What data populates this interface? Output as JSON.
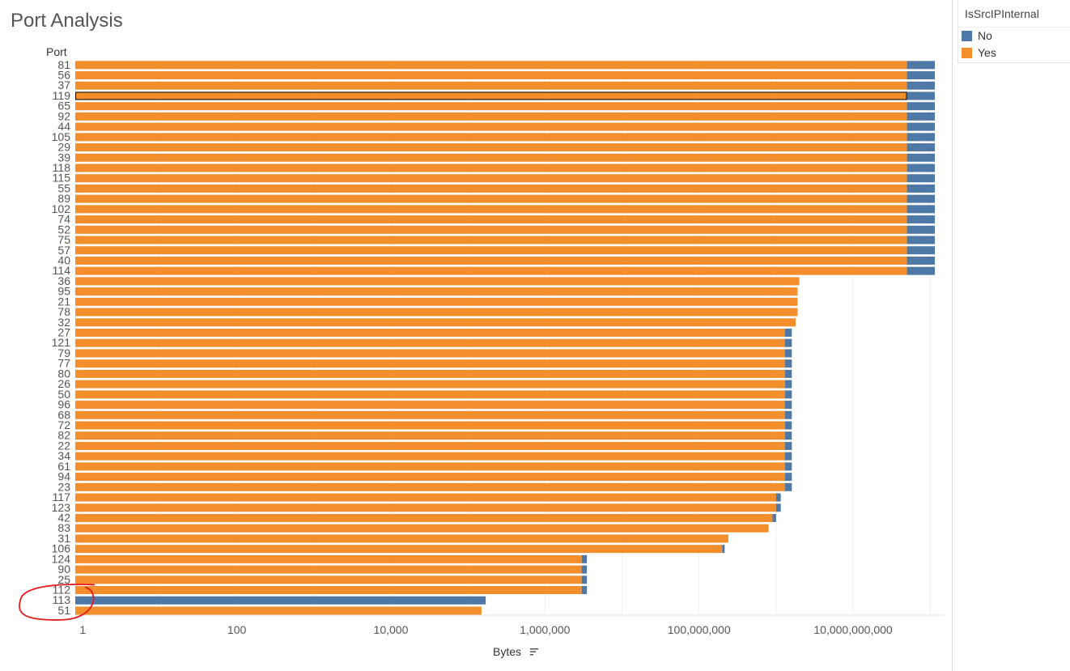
{
  "title": "Port Analysis",
  "legend": {
    "title": "IsSrcIPInternal",
    "items": [
      {
        "label": "No",
        "color": "#4e79a7"
      },
      {
        "label": "Yes",
        "color": "#f28e2b"
      }
    ]
  },
  "colors": {
    "no": "#4e79a7",
    "yes": "#f28e2b",
    "annotation": "#e31a1c",
    "selected_outline": "#000000"
  },
  "chart_data": {
    "type": "bar",
    "orientation": "horizontal",
    "stacked": true,
    "title": "Port Analysis",
    "ylabel": "Port",
    "xlabel": "Bytes",
    "x_scale": "log",
    "xlim": [
      0.8,
      150000000000
    ],
    "x_ticks": [
      1,
      100,
      10000,
      1000000,
      100000000,
      10000000000
    ],
    "x_tick_labels": [
      "1",
      "100",
      "10,000",
      "1,000,000",
      "100,000,000",
      "10,000,000,000"
    ],
    "grid": true,
    "legend_position": "right",
    "sort_icon": "sort-descending-icon",
    "selected_category": "119",
    "annotation": {
      "shape": "red freehand circle",
      "around_categories": [
        "113",
        "51"
      ]
    },
    "categories": [
      "81",
      "56",
      "37",
      "119",
      "65",
      "92",
      "44",
      "105",
      "29",
      "39",
      "118",
      "115",
      "55",
      "89",
      "102",
      "74",
      "52",
      "75",
      "57",
      "40",
      "114",
      "36",
      "95",
      "21",
      "78",
      "32",
      "27",
      "121",
      "79",
      "77",
      "80",
      "26",
      "50",
      "96",
      "68",
      "72",
      "82",
      "22",
      "34",
      "61",
      "94",
      "23",
      "117",
      "123",
      "42",
      "83",
      "31",
      "106",
      "124",
      "90",
      "25",
      "112",
      "113",
      "51"
    ],
    "series": [
      {
        "name": "Yes",
        "values": [
          50000000000,
          50000000000,
          50000000000,
          50000000000,
          50000000000,
          50000000000,
          50000000000,
          50000000000,
          50000000000,
          50000000000,
          50000000000,
          50000000000,
          50000000000,
          50000000000,
          50000000000,
          50000000000,
          50000000000,
          50000000000,
          50000000000,
          50000000000,
          50000000000,
          2000000000,
          1900000000,
          1900000000,
          1900000000,
          1800000000,
          1300000000,
          1300000000,
          1300000000,
          1300000000,
          1300000000,
          1300000000,
          1300000000,
          1300000000,
          1300000000,
          1300000000,
          1300000000,
          1300000000,
          1300000000,
          1300000000,
          1300000000,
          1300000000,
          1000000000,
          1000000000,
          900000000,
          800000000,
          240000000,
          200000000,
          3000000,
          3000000,
          3000000,
          3000000,
          0,
          150000
        ]
      },
      {
        "name": "No",
        "values": [
          65000000000,
          65000000000,
          65000000000,
          65000000000,
          65000000000,
          65000000000,
          65000000000,
          65000000000,
          65000000000,
          65000000000,
          65000000000,
          65000000000,
          65000000000,
          65000000000,
          65000000000,
          65000000000,
          65000000000,
          65000000000,
          65000000000,
          65000000000,
          65000000000,
          0,
          0,
          0,
          0,
          0,
          300000000,
          300000000,
          300000000,
          300000000,
          300000000,
          300000000,
          300000000,
          300000000,
          300000000,
          300000000,
          300000000,
          300000000,
          300000000,
          300000000,
          300000000,
          300000000,
          150000000,
          150000000,
          100000000,
          0,
          0,
          15000000,
          500000,
          500000,
          500000,
          500000,
          170000,
          0
        ]
      }
    ]
  }
}
